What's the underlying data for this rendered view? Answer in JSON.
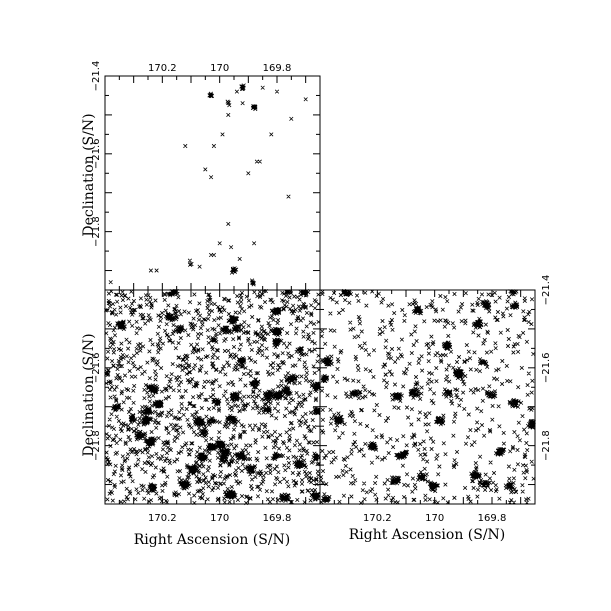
{
  "chart_data": [
    {
      "id": "top-left",
      "type": "scatter",
      "marker": "x",
      "xlabel": "",
      "ylabel": "Declination (S/N)",
      "xlim": [
        170.4,
        169.65
      ],
      "ylim": [
        -21.95,
        -21.4
      ],
      "xticks": [
        {
          "v": 170.2,
          "label": "170.2"
        },
        {
          "v": 170.0,
          "label": "170"
        },
        {
          "v": 169.8,
          "label": "169.8"
        }
      ],
      "yticks": [
        {
          "v": -21.4,
          "label": "−21.4"
        },
        {
          "v": -21.6,
          "label": "−21.6"
        },
        {
          "v": -21.8,
          "label": "−21.8"
        }
      ],
      "x_tick_side": "top",
      "y_tick_side": "left",
      "sparse_points": [
        [
          170.38,
          -21.93
        ],
        [
          170.24,
          -21.9
        ],
        [
          170.22,
          -21.9
        ],
        [
          170.12,
          -21.58
        ],
        [
          170.07,
          -21.89
        ],
        [
          170.03,
          -21.86
        ],
        [
          170.02,
          -21.86
        ],
        [
          169.97,
          -21.78
        ],
        [
          169.93,
          -21.87
        ],
        [
          169.88,
          -21.83
        ],
        [
          169.87,
          -21.62
        ],
        [
          169.86,
          -21.62
        ],
        [
          169.82,
          -21.55
        ],
        [
          169.76,
          -21.71
        ],
        [
          169.8,
          -21.44
        ],
        [
          169.7,
          -21.46
        ],
        [
          170.02,
          -21.58
        ],
        [
          169.99,
          -21.55
        ],
        [
          169.97,
          -21.5
        ],
        [
          169.94,
          -21.44
        ],
        [
          170.05,
          -21.64
        ],
        [
          170.03,
          -21.66
        ],
        [
          169.9,
          -21.65
        ],
        [
          169.92,
          -21.47
        ],
        [
          169.75,
          -21.51
        ],
        [
          169.85,
          -21.43
        ],
        [
          170.0,
          -21.83
        ],
        [
          169.96,
          -21.84
        ]
      ],
      "clumps": [
        {
          "cx": 170.03,
          "cy": -21.45,
          "n": 10
        },
        {
          "cx": 169.97,
          "cy": -21.47,
          "n": 6
        },
        {
          "cx": 169.92,
          "cy": -21.43,
          "n": 10
        },
        {
          "cx": 169.88,
          "cy": -21.48,
          "n": 10
        },
        {
          "cx": 169.95,
          "cy": -21.9,
          "n": 14
        },
        {
          "cx": 169.88,
          "cy": -21.93,
          "n": 6
        },
        {
          "cx": 170.1,
          "cy": -21.88,
          "n": 5
        }
      ]
    },
    {
      "id": "bottom-left",
      "type": "scatter",
      "marker": "x",
      "xlabel": "Right Ascension (S/N)",
      "ylabel": "Declination (S/N)",
      "xlim": [
        170.4,
        169.65
      ],
      "ylim": [
        -21.95,
        -21.4
      ],
      "xticks": [
        {
          "v": 170.2,
          "label": "170.2"
        },
        {
          "v": 170.0,
          "label": "170"
        },
        {
          "v": 169.8,
          "label": "169.8"
        }
      ],
      "yticks": [
        {
          "v": -21.6,
          "label": "−21.6"
        },
        {
          "v": -21.8,
          "label": "−21.8"
        }
      ],
      "x_tick_side": "bottom",
      "y_tick_side": "left",
      "density": "dense",
      "background_points": 1400,
      "clumps": 55
    },
    {
      "id": "bottom-right",
      "type": "scatter",
      "marker": "x",
      "xlabel": "Right Ascension (S/N)",
      "ylabel": "",
      "xlim": [
        170.4,
        169.65
      ],
      "ylim": [
        -21.95,
        -21.4
      ],
      "xticks": [
        {
          "v": 170.2,
          "label": "170.2"
        },
        {
          "v": 170.0,
          "label": "170"
        },
        {
          "v": 169.8,
          "label": "169.8"
        }
      ],
      "yticks": [
        {
          "v": -21.4,
          "label": "−21.4"
        },
        {
          "v": -21.6,
          "label": "−21.6"
        },
        {
          "v": -21.8,
          "label": "−21.8"
        }
      ],
      "x_tick_side": "bottom",
      "y_tick_side": "right",
      "density": "medium",
      "background_points": 650,
      "clumps": 30
    }
  ]
}
